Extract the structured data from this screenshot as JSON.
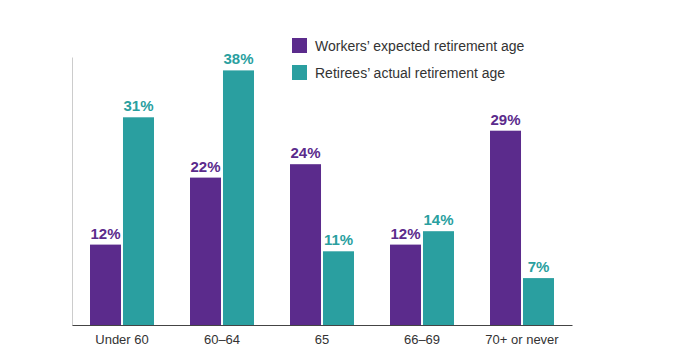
{
  "chart_data": {
    "type": "bar",
    "categories": [
      "Under 60",
      "60–64",
      "65",
      "66–69",
      "70+ or never"
    ],
    "series": [
      {
        "name": "Workers’ expected retirement age",
        "color": "#5b2b8c",
        "values": [
          12,
          22,
          24,
          12,
          29
        ],
        "value_labels": [
          "12%",
          "22%",
          "24%",
          "12%",
          "29%"
        ]
      },
      {
        "name": "Retirees’ actual retirement age",
        "color": "#2a9fa0",
        "values": [
          31,
          38,
          11,
          14,
          7
        ],
        "value_labels": [
          "31%",
          "38%",
          "11%",
          "14%",
          "7%"
        ]
      }
    ],
    "ylim": [
      0,
      40
    ],
    "data_labels": true,
    "legend": "top-right",
    "tick_labels": "x",
    "grid": false
  }
}
